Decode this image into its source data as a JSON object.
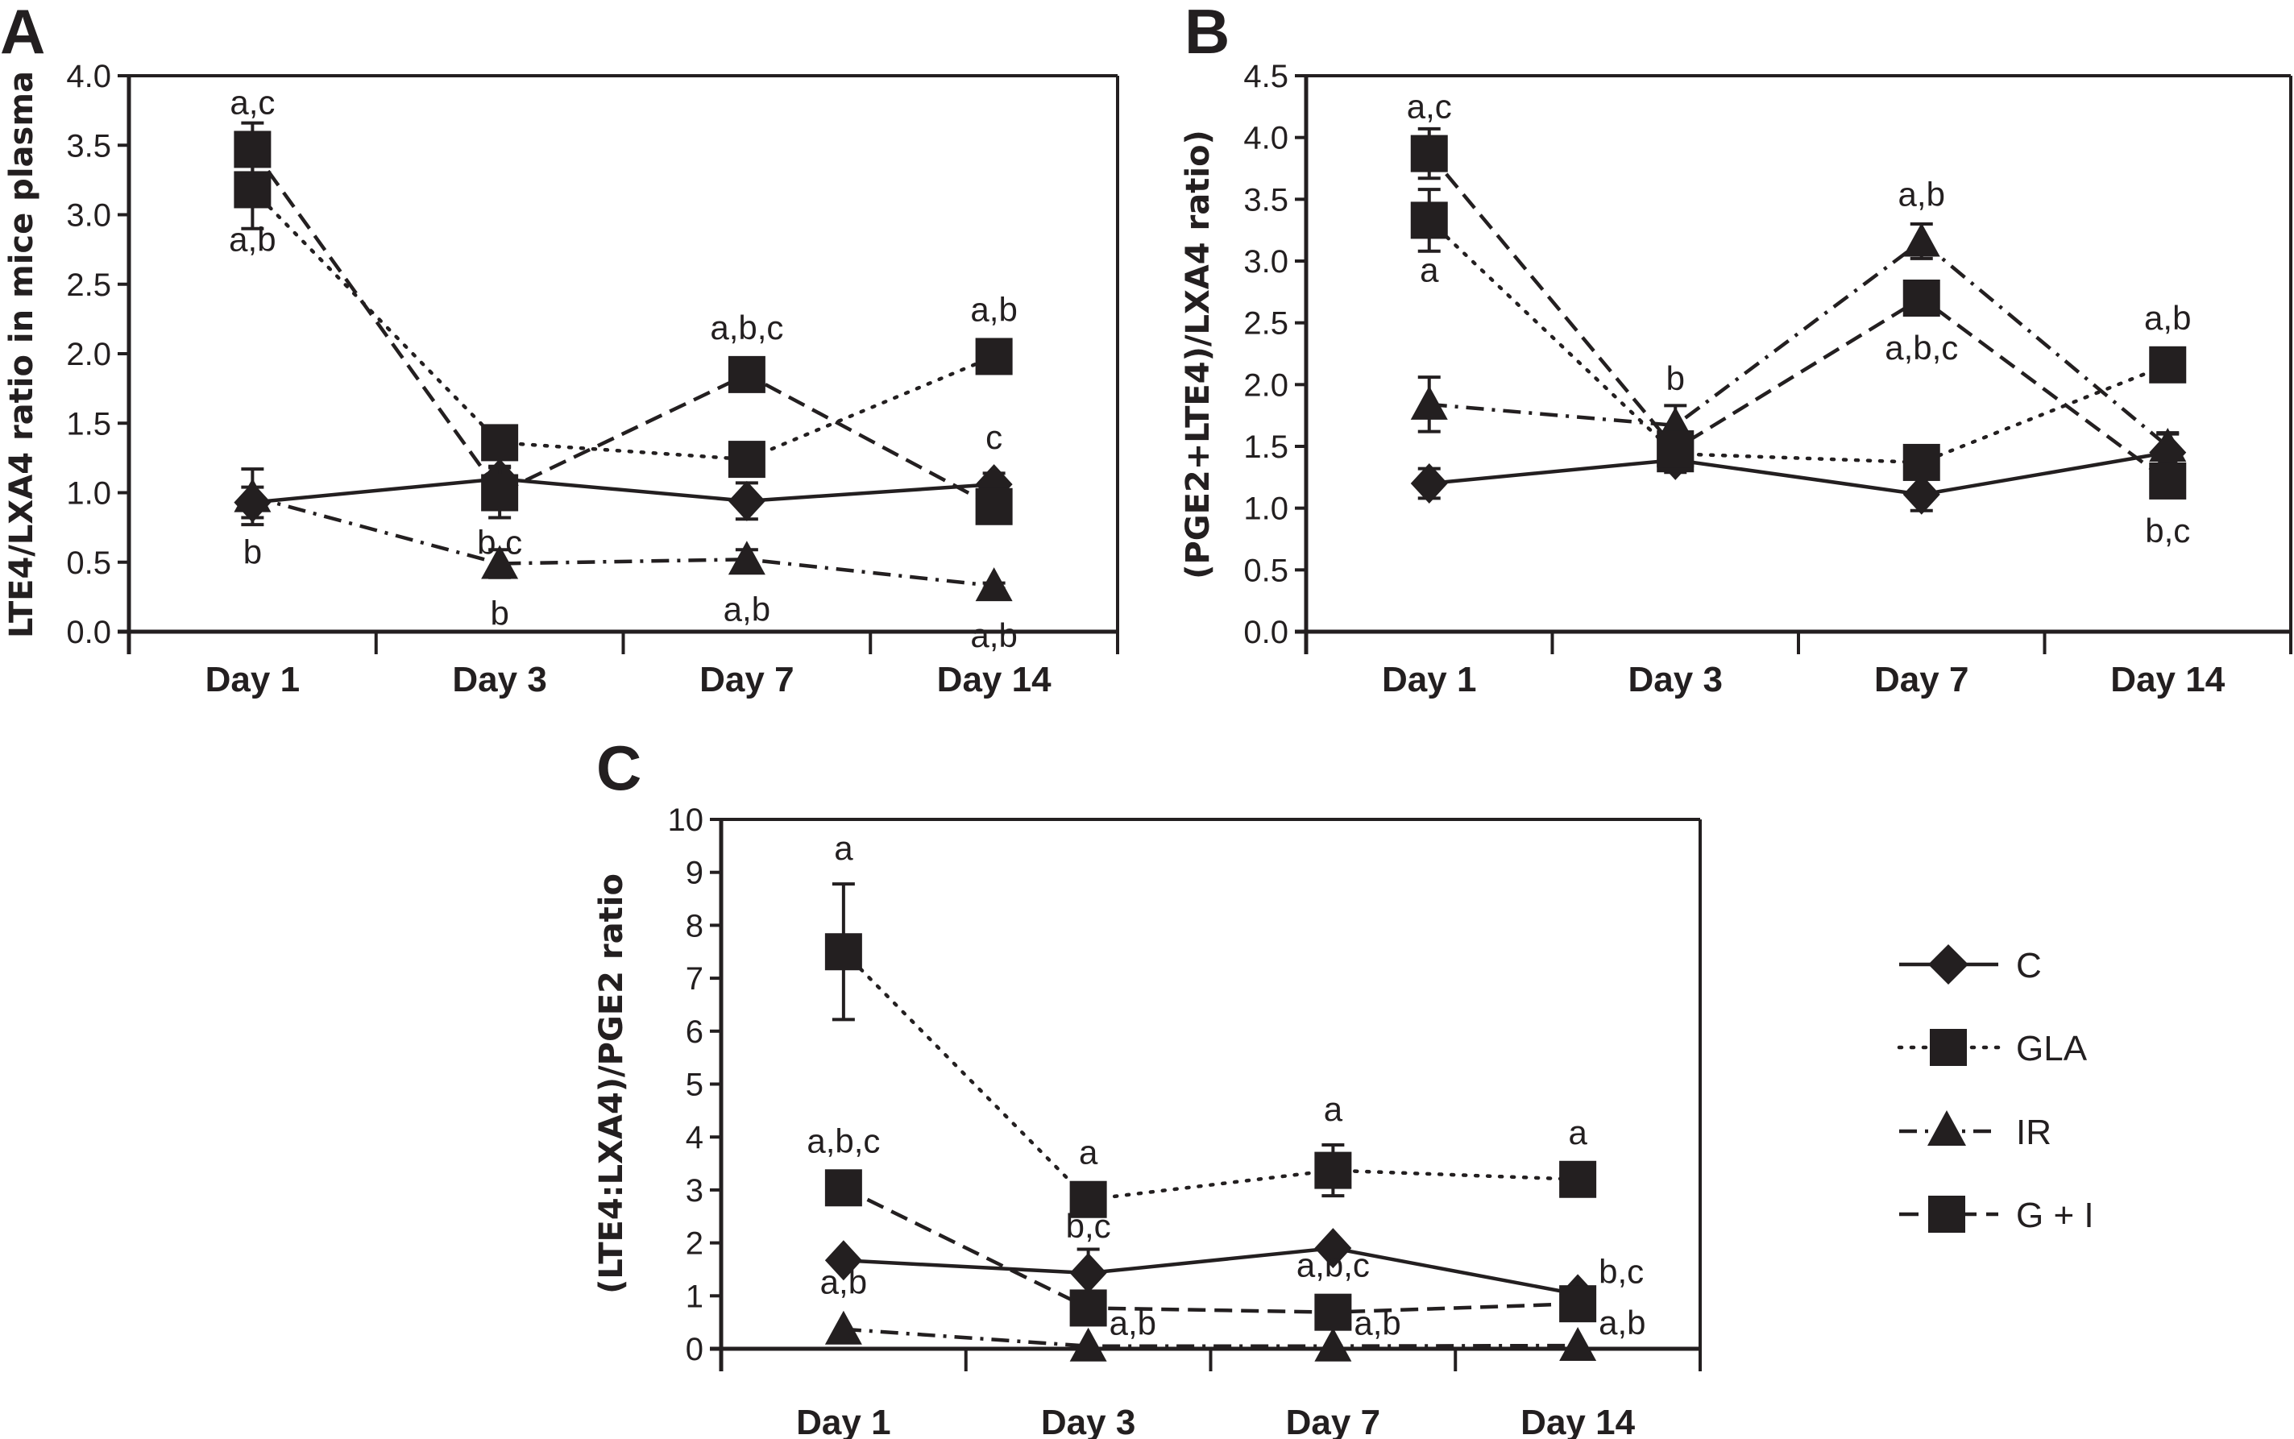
{
  "chart_data": [
    {
      "panel": "A",
      "type": "line",
      "title": "",
      "xlabel": "",
      "ylabel": "LTE4/LXA4 ratio in mice plasma",
      "categories": [
        "Day 1",
        "Day 3",
        "Day 7",
        "Day 14"
      ],
      "ylim": [
        0,
        4.0
      ],
      "yticks": [
        "0.0",
        "0.5",
        "1.0",
        "1.5",
        "2.0",
        "2.5",
        "3.0",
        "3.5",
        "4.0"
      ],
      "grid": false,
      "series": [
        {
          "name": "C",
          "values": [
            0.93,
            1.1,
            0.94,
            1.06
          ],
          "errors": [
            0.11,
            0.09,
            0.13,
            0.08
          ]
        },
        {
          "name": "GLA",
          "values": [
            3.18,
            1.36,
            1.24,
            1.98
          ],
          "errors": [
            0.28,
            0.06,
            0.09,
            0.1
          ]
        },
        {
          "name": "IR",
          "values": [
            0.97,
            0.49,
            0.52,
            0.33
          ],
          "errors": [
            0.2,
            0.1,
            0.07,
            0.02
          ]
        },
        {
          "name": "G + I",
          "values": [
            3.47,
            1.0,
            1.85,
            0.9
          ],
          "errors": [
            0.19,
            0.18,
            0.03,
            0.02
          ]
        }
      ],
      "annotations": [
        {
          "category": "Day 1",
          "y": 3.47,
          "pos": "above",
          "text": "a,c"
        },
        {
          "category": "Day 1",
          "y": 3.18,
          "pos": "below",
          "text": "a,b"
        },
        {
          "category": "Day 1",
          "y": 0.93,
          "pos": "below",
          "text": "b"
        },
        {
          "category": "Day 3",
          "y": 1.0,
          "pos": "below",
          "text": "b,c"
        },
        {
          "category": "Day 3",
          "y": 0.49,
          "pos": "below",
          "text": "b"
        },
        {
          "category": "Day 7",
          "y": 1.85,
          "pos": "above",
          "text": "a,b,c"
        },
        {
          "category": "Day 7",
          "y": 0.52,
          "pos": "below",
          "text": "a,b"
        },
        {
          "category": "Day 14",
          "y": 1.98,
          "pos": "above",
          "text": "a,b"
        },
        {
          "category": "Day 14",
          "y": 1.06,
          "pos": "above",
          "text": "c"
        },
        {
          "category": "Day 14",
          "y": 0.33,
          "pos": "below",
          "text": "a,b"
        }
      ]
    },
    {
      "panel": "B",
      "type": "line",
      "title": "",
      "xlabel": "",
      "ylabel": "(PGE2+LTE4)/LXA4 ratio)",
      "categories": [
        "Day 1",
        "Day 3",
        "Day 7",
        "Day 14"
      ],
      "ylim": [
        0,
        4.5
      ],
      "yticks": [
        "0.0",
        "0.5",
        "1.0",
        "1.5",
        "2.0",
        "2.5",
        "3.0",
        "3.5",
        "4.0",
        "4.5"
      ],
      "grid": false,
      "series": [
        {
          "name": "C",
          "values": [
            1.2,
            1.39,
            1.11,
            1.45
          ],
          "errors": [
            0.12,
            0.1,
            0.13,
            0.16
          ]
        },
        {
          "name": "GLA",
          "values": [
            3.33,
            1.44,
            1.37,
            2.16
          ],
          "errors": [
            0.25,
            0.1,
            0.11,
            0.1
          ]
        },
        {
          "name": "IR",
          "values": [
            1.84,
            1.67,
            3.16,
            1.5
          ],
          "errors": [
            0.22,
            0.16,
            0.14,
            0.1
          ]
        },
        {
          "name": "G + I",
          "values": [
            3.87,
            1.48,
            2.7,
            1.22
          ],
          "errors": [
            0.2,
            0.12,
            0.05,
            0.05
          ]
        }
      ],
      "annotations": [
        {
          "category": "Day 1",
          "y": 3.87,
          "pos": "above",
          "text": "a,c"
        },
        {
          "category": "Day 1",
          "y": 3.33,
          "pos": "below",
          "text": "a"
        },
        {
          "category": "Day 3",
          "y": 1.67,
          "pos": "above",
          "text": "b"
        },
        {
          "category": "Day 7",
          "y": 3.16,
          "pos": "above",
          "text": "a,b"
        },
        {
          "category": "Day 7",
          "y": 2.7,
          "pos": "below",
          "text": "a,b,c"
        },
        {
          "category": "Day 14",
          "y": 2.16,
          "pos": "above",
          "text": "a,b"
        },
        {
          "category": "Day 14",
          "y": 1.22,
          "pos": "below",
          "text": "b,c"
        }
      ]
    },
    {
      "panel": "C",
      "type": "line",
      "title": "",
      "xlabel": "",
      "ylabel": "(LTE4:LXA4)/PGE2 ratio",
      "categories": [
        "Day 1",
        "Day 3",
        "Day 7",
        "Day 14"
      ],
      "ylim": [
        0,
        10
      ],
      "yticks": [
        "0",
        "1",
        "2",
        "3",
        "4",
        "5",
        "6",
        "7",
        "8",
        "9",
        "10"
      ],
      "grid": false,
      "series": [
        {
          "name": "C",
          "values": [
            1.67,
            1.43,
            1.9,
            1.03
          ],
          "errors": [
            0.0,
            0.45,
            0.0,
            0.0
          ]
        },
        {
          "name": "GLA",
          "values": [
            7.5,
            2.82,
            3.37,
            3.2
          ],
          "errors": [
            1.28,
            0.3,
            0.48,
            0.0
          ]
        },
        {
          "name": "IR",
          "values": [
            0.37,
            0.05,
            0.05,
            0.06
          ],
          "errors": [
            0.0,
            0.0,
            0.0,
            0.0
          ]
        },
        {
          "name": "G + I",
          "values": [
            3.04,
            0.77,
            0.69,
            0.85
          ],
          "errors": [
            0.0,
            0.0,
            0.0,
            0.0
          ]
        }
      ],
      "annotations": [
        {
          "category": "Day 1",
          "y": 7.5,
          "pos": "above-error",
          "text": "a"
        },
        {
          "category": "Day 1",
          "y": 3.04,
          "pos": "above",
          "text": "a,b,c"
        },
        {
          "category": "Day 1",
          "y": 0.37,
          "pos": "above",
          "text": "a,b"
        },
        {
          "category": "Day 3",
          "y": 2.82,
          "pos": "above",
          "text": "a"
        },
        {
          "category": "Day 3",
          "y": 1.43,
          "pos": "above",
          "text": "b,c"
        },
        {
          "category": "Day 3",
          "y": 0.05,
          "pos": "right",
          "text": "a,b"
        },
        {
          "category": "Day 7",
          "y": 3.37,
          "pos": "above-error",
          "text": "a"
        },
        {
          "category": "Day 7",
          "y": 0.69,
          "pos": "above",
          "text": "a,b,c"
        },
        {
          "category": "Day 7",
          "y": 0.05,
          "pos": "right",
          "text": "a,b"
        },
        {
          "category": "Day 14",
          "y": 3.2,
          "pos": "above",
          "text": "a"
        },
        {
          "category": "Day 14",
          "y": 1.03,
          "pos": "right",
          "text": "b,c"
        },
        {
          "category": "Day 14",
          "y": 0.06,
          "pos": "right",
          "text": "a,b"
        }
      ]
    }
  ],
  "legend": {
    "placement": "right-of-panel-C",
    "entries": [
      {
        "name": "C",
        "marker": "diamond",
        "line": "solid"
      },
      {
        "name": "GLA",
        "marker": "square",
        "line": "dotted"
      },
      {
        "name": "IR",
        "marker": "triangle",
        "line": "dash-dot"
      },
      {
        "name": "G + I",
        "marker": "square",
        "line": "dashed"
      }
    ]
  },
  "series_styles": {
    "C": {
      "marker": "diamond",
      "dash": "solid"
    },
    "GLA": {
      "marker": "square",
      "dash": "dotted"
    },
    "IR": {
      "marker": "triangle",
      "dash": "dash-dot"
    },
    "G + I": {
      "marker": "square",
      "dash": "dashed"
    }
  },
  "colors": {
    "ink": "#231f20",
    "background": "#ffffff"
  }
}
